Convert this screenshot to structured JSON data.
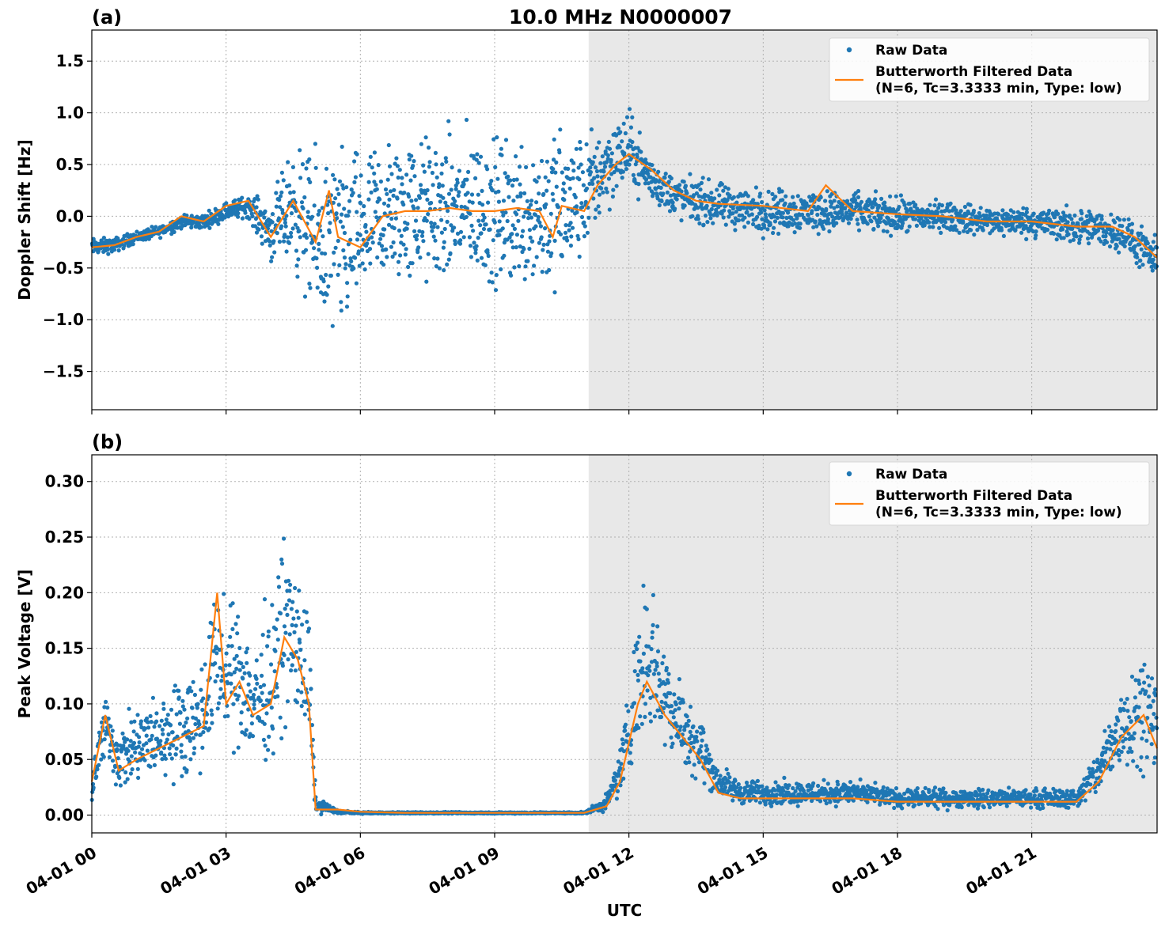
{
  "chart_data": [
    {
      "type": "scatter",
      "panel_label": "(a)",
      "title": "10.0 MHz N0000007",
      "xlabel": "",
      "ylabel": "Doppler Shift [Hz]",
      "xlim": [
        0,
        23.8
      ],
      "ylim": [
        -1.87,
        1.8
      ],
      "yticks": [
        -1.5,
        -1.0,
        -0.5,
        0.0,
        0.5,
        1.0,
        1.5
      ],
      "ytick_labels": [
        "−1.5",
        "−1.0",
        "−0.5",
        "0.0",
        "0.5",
        "1.0",
        "1.5"
      ],
      "grid": true,
      "shaded_region": [
        11.1,
        23.8
      ],
      "legend": {
        "position": "top-right",
        "entries": [
          {
            "label": "Raw Data",
            "kind": "marker",
            "color": "#1f77b4"
          },
          {
            "label": "Butterworth Filtered Data",
            "label2": "(N=6, Tc=3.3333 min, Type: low)",
            "kind": "line",
            "color": "#ff7f0e"
          }
        ]
      },
      "series": [
        {
          "name": "Raw Data",
          "color": "#1f77b4",
          "x": [
            0.0,
            0.5,
            1.0,
            1.5,
            2.0,
            2.5,
            3.0,
            3.5,
            4.0,
            4.5,
            5.0,
            5.5,
            6.0,
            6.5,
            7.0,
            7.5,
            8.0,
            8.5,
            9.0,
            9.5,
            10.0,
            10.5,
            11.0,
            11.5,
            12.0,
            12.5,
            13.0,
            14.0,
            15.0,
            16.0,
            17.0,
            18.0,
            19.0,
            20.0,
            21.0,
            22.0,
            23.0,
            23.8
          ],
          "y": [
            -0.3,
            -0.28,
            -0.2,
            -0.15,
            -0.05,
            -0.05,
            0.05,
            0.1,
            -0.15,
            0.1,
            -0.25,
            -0.3,
            -0.15,
            0.0,
            0.05,
            0.05,
            0.05,
            0.1,
            0.0,
            0.05,
            0.05,
            0.05,
            0.2,
            0.5,
            0.65,
            0.35,
            0.2,
            0.1,
            0.05,
            0.05,
            0.05,
            0.0,
            0.0,
            -0.05,
            -0.05,
            -0.1,
            -0.15,
            -0.45
          ],
          "spread": [
            0.12,
            0.1,
            0.08,
            0.08,
            0.1,
            0.1,
            0.12,
            0.15,
            0.4,
            0.8,
            1.1,
            1.3,
            1.0,
            1.0,
            1.0,
            1.0,
            1.0,
            1.0,
            1.0,
            1.0,
            1.1,
            1.1,
            0.8,
            0.6,
            0.5,
            0.3,
            0.3,
            0.3,
            0.3,
            0.3,
            0.25,
            0.25,
            0.2,
            0.2,
            0.2,
            0.25,
            0.25,
            0.3
          ]
        },
        {
          "name": "Butterworth Filtered Data (N=6, Tc=3.3333 min, Type: low)",
          "color": "#ff7f0e",
          "x": [
            0.0,
            0.5,
            1.0,
            1.5,
            2.0,
            2.5,
            3.0,
            3.5,
            4.0,
            4.5,
            5.0,
            5.3,
            5.5,
            6.0,
            6.5,
            7.0,
            7.5,
            8.0,
            8.5,
            9.0,
            9.5,
            10.0,
            10.3,
            10.5,
            11.0,
            11.3,
            11.7,
            12.0,
            12.5,
            13.0,
            13.5,
            14.0,
            15.0,
            16.0,
            16.4,
            17.0,
            18.0,
            19.0,
            20.0,
            21.0,
            22.0,
            22.8,
            23.3,
            23.8
          ],
          "y": [
            -0.3,
            -0.28,
            -0.2,
            -0.15,
            0.0,
            -0.05,
            0.1,
            0.15,
            -0.2,
            0.15,
            -0.25,
            0.25,
            -0.2,
            -0.3,
            0.0,
            0.05,
            0.05,
            0.08,
            0.05,
            0.05,
            0.08,
            0.05,
            -0.2,
            0.1,
            0.05,
            0.3,
            0.5,
            0.6,
            0.45,
            0.25,
            0.15,
            0.12,
            0.1,
            0.05,
            0.3,
            0.05,
            0.02,
            0.0,
            -0.05,
            -0.05,
            -0.1,
            -0.1,
            -0.2,
            -0.4
          ]
        }
      ]
    },
    {
      "type": "scatter",
      "panel_label": "(b)",
      "xlabel": "UTC",
      "ylabel": "Peak Voltage [V]",
      "xlim": [
        0,
        23.8
      ],
      "ylim": [
        -0.016,
        0.324
      ],
      "yticks": [
        0.0,
        0.05,
        0.1,
        0.15,
        0.2,
        0.25,
        0.3
      ],
      "ytick_labels": [
        "0.00",
        "0.05",
        "0.10",
        "0.15",
        "0.20",
        "0.25",
        "0.30"
      ],
      "xticks": [
        0,
        3,
        6,
        9,
        12,
        15,
        18,
        21
      ],
      "xtick_labels": [
        "04-01 00",
        "04-01 03",
        "04-01 06",
        "04-01 09",
        "04-01 12",
        "04-01 15",
        "04-01 18",
        "04-01 21"
      ],
      "grid": true,
      "shaded_region": [
        11.1,
        23.8
      ],
      "legend": {
        "position": "top-right",
        "entries": [
          {
            "label": "Raw Data",
            "kind": "marker",
            "color": "#1f77b4"
          },
          {
            "label": "Butterworth Filtered Data",
            "label2": "(N=6, Tc=3.3333 min, Type: low)",
            "kind": "line",
            "color": "#ff7f0e"
          }
        ]
      },
      "series": [
        {
          "name": "Raw Data",
          "color": "#1f77b4",
          "x": [
            0.0,
            0.3,
            0.6,
            1.0,
            1.5,
            2.0,
            2.5,
            2.8,
            3.0,
            3.3,
            3.6,
            4.0,
            4.3,
            4.6,
            4.85,
            5.0,
            5.5,
            6.0,
            7.0,
            8.0,
            9.0,
            10.0,
            11.0,
            11.5,
            11.8,
            12.2,
            12.4,
            12.8,
            13.2,
            13.6,
            14.0,
            14.5,
            15.0,
            16.0,
            17.0,
            18.0,
            19.0,
            20.0,
            21.0,
            22.0,
            22.5,
            23.0,
            23.5,
            23.8
          ],
          "y": [
            0.03,
            0.08,
            0.05,
            0.06,
            0.07,
            0.08,
            0.09,
            0.15,
            0.12,
            0.13,
            0.1,
            0.12,
            0.17,
            0.15,
            0.12,
            0.01,
            0.003,
            0.002,
            0.002,
            0.002,
            0.002,
            0.002,
            0.002,
            0.01,
            0.04,
            0.12,
            0.15,
            0.11,
            0.08,
            0.06,
            0.03,
            0.02,
            0.02,
            0.02,
            0.02,
            0.015,
            0.015,
            0.015,
            0.015,
            0.015,
            0.04,
            0.08,
            0.1,
            0.08
          ],
          "spread": [
            0.03,
            0.04,
            0.04,
            0.05,
            0.05,
            0.06,
            0.07,
            0.09,
            0.08,
            0.09,
            0.08,
            0.1,
            0.11,
            0.1,
            0.09,
            0.01,
            0.002,
            0.001,
            0.001,
            0.001,
            0.001,
            0.001,
            0.001,
            0.01,
            0.03,
            0.08,
            0.1,
            0.07,
            0.05,
            0.04,
            0.02,
            0.015,
            0.015,
            0.015,
            0.015,
            0.012,
            0.012,
            0.012,
            0.012,
            0.012,
            0.03,
            0.06,
            0.07,
            0.06
          ]
        },
        {
          "name": "Butterworth Filtered Data (N=6, Tc=3.3333 min, Type: low)",
          "color": "#ff7f0e",
          "x": [
            0.0,
            0.3,
            0.6,
            1.0,
            1.5,
            2.0,
            2.5,
            2.8,
            3.0,
            3.3,
            3.6,
            4.0,
            4.3,
            4.6,
            4.85,
            5.0,
            5.5,
            6.0,
            7.0,
            8.0,
            9.0,
            10.0,
            11.0,
            11.5,
            11.8,
            12.2,
            12.4,
            12.8,
            13.2,
            13.6,
            14.0,
            14.5,
            15.0,
            16.0,
            17.0,
            18.0,
            19.0,
            20.0,
            21.0,
            22.0,
            22.5,
            23.0,
            23.5,
            23.8
          ],
          "y": [
            0.03,
            0.09,
            0.04,
            0.05,
            0.06,
            0.07,
            0.08,
            0.2,
            0.1,
            0.12,
            0.09,
            0.1,
            0.16,
            0.14,
            0.1,
            0.005,
            0.005,
            0.003,
            0.002,
            0.002,
            0.002,
            0.002,
            0.002,
            0.008,
            0.03,
            0.1,
            0.12,
            0.09,
            0.07,
            0.05,
            0.02,
            0.015,
            0.015,
            0.015,
            0.015,
            0.012,
            0.012,
            0.012,
            0.012,
            0.012,
            0.03,
            0.07,
            0.09,
            0.06
          ]
        }
      ]
    }
  ]
}
